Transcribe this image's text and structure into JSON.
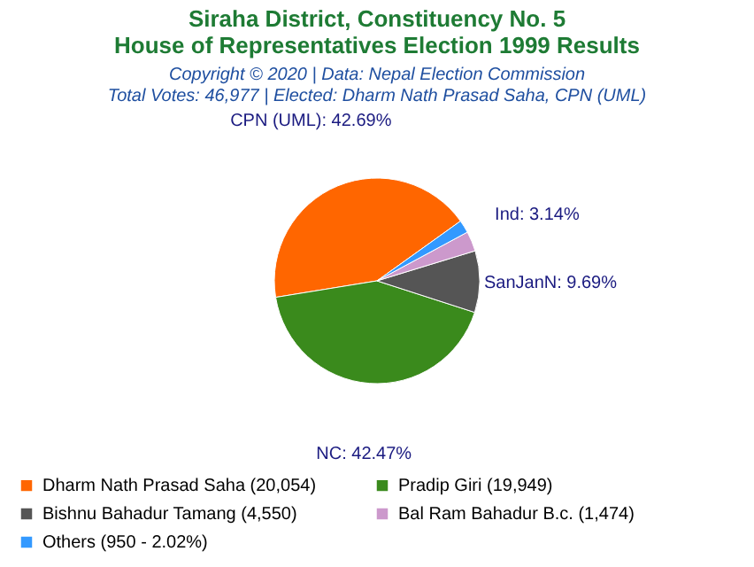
{
  "chart_data": {
    "type": "pie",
    "title": "Siraha District, Constituency No. 5\nHouse of Representatives Election 1999 Results",
    "subtitle": "Copyright © 2020 | Data: Nepal Election Commission",
    "annotations": [
      "Total Votes: 46,977 | Elected: Dharm Nath Prasad Saha, CPN (UML)"
    ],
    "categories": [
      "Dharm Nath Prasad Saha (20,054)",
      "Pradip Giri (19,949)",
      "Bishnu Bahadur Tamang (4,550)",
      "Bal Ram Bahadur B.c. (1,474)",
      "Others (950 - 2.02%)"
    ],
    "values": [
      42.69,
      42.47,
      9.69,
      3.14,
      2.02
    ],
    "value_labels": [
      "CPN (UML): 42.69%",
      "NC: 42.47%",
      "SanJanN: 9.69%",
      "Ind: 3.14%",
      null
    ],
    "colors": [
      "#ff6600",
      "#3a8a1c",
      "#555555",
      "#cc99cc",
      "#3399ff"
    ],
    "legend": "bottom"
  }
}
